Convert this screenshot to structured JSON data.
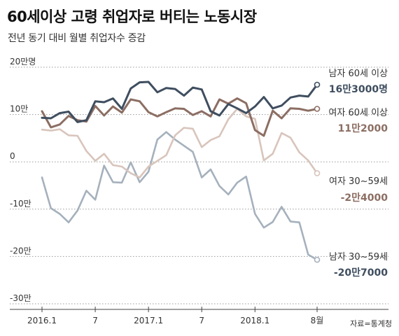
{
  "title": "60세이상 고령 취업자로 버티는 노동시장",
  "subtitle": "전년 동기 대비 월별 취업자수 증감",
  "source": "자료=통계청",
  "chart_data": {
    "type": "line",
    "title": "60세이상 고령 취업자로 버티는 노동시장",
    "subtitle": "전년 동기 대비 월별 취업자수 증감",
    "unit": "명",
    "ylim": [
      -300000,
      200000
    ],
    "yticks": [
      {
        "value": 200000,
        "label": "20만명"
      },
      {
        "value": 100000,
        "label": "10만"
      },
      {
        "value": 0,
        "label": "0"
      },
      {
        "value": -100000,
        "label": "-10만"
      },
      {
        "value": -200000,
        "label": "-20만"
      },
      {
        "value": -300000,
        "label": "-30만"
      }
    ],
    "x": [
      "2016.1",
      "2016.2",
      "2016.3",
      "2016.4",
      "2016.5",
      "2016.6",
      "2016.7",
      "2016.8",
      "2016.9",
      "2016.10",
      "2016.11",
      "2016.12",
      "2017.1",
      "2017.2",
      "2017.3",
      "2017.4",
      "2017.5",
      "2017.6",
      "2017.7",
      "2017.8",
      "2017.9",
      "2017.10",
      "2017.11",
      "2017.12",
      "2018.1",
      "2018.2",
      "2018.3",
      "2018.4",
      "2018.5",
      "2018.6",
      "2018.7",
      "2018.8"
    ],
    "xticks": [
      {
        "index": 0,
        "label": "2016.1"
      },
      {
        "index": 6,
        "label": "7"
      },
      {
        "index": 12,
        "label": "2017.1"
      },
      {
        "index": 18,
        "label": "7"
      },
      {
        "index": 24,
        "label": "2018.1"
      },
      {
        "index": 31,
        "label": "8월"
      }
    ],
    "grid": "dotted horizontal",
    "series": [
      {
        "name": "남자 60세 이상",
        "end_label": "16만3000명",
        "color": "#3f4e5f",
        "values": [
          93000,
          92000,
          103000,
          106000,
          84000,
          88000,
          128000,
          126000,
          134000,
          112000,
          155000,
          168000,
          169000,
          147000,
          156000,
          154000,
          140000,
          157000,
          153000,
          107000,
          98000,
          122000,
          113000,
          103000,
          117000,
          137000,
          113000,
          119000,
          136000,
          140000,
          138000,
          163000
        ]
      },
      {
        "name": "여자 60세 이상",
        "end_label": "11만2000",
        "color": "#8c6e63",
        "values": [
          107000,
          73000,
          79000,
          97000,
          88000,
          85000,
          118000,
          98000,
          117000,
          104000,
          132000,
          128000,
          105000,
          96000,
          105000,
          113000,
          112000,
          99000,
          107000,
          96000,
          132000,
          123000,
          134000,
          124000,
          67000,
          55000,
          108000,
          92000,
          113000,
          112000,
          108000,
          112000
        ]
      },
      {
        "name": "여자 30~59세",
        "end_label": "-2만4000",
        "color": "#d8c5bc",
        "values": [
          68000,
          66000,
          69000,
          56000,
          55000,
          23000,
          2000,
          17000,
          -7000,
          -10000,
          -24000,
          -33000,
          -10000,
          2000,
          14000,
          56000,
          72000,
          70000,
          31000,
          46000,
          54000,
          90000,
          112000,
          96000,
          91000,
          3000,
          17000,
          61000,
          51000,
          20000,
          3000,
          -24000
        ]
      },
      {
        "name": "남자 30~59세",
        "end_label": "-20만7000",
        "color": "#a5b1bc",
        "values": [
          -33000,
          -98000,
          -110000,
          -128000,
          -103000,
          -61000,
          -80000,
          -8000,
          -43000,
          -44000,
          -1000,
          -43000,
          -21000,
          47000,
          63000,
          47000,
          34000,
          21000,
          -33000,
          -16000,
          -51000,
          -69000,
          -44000,
          -31000,
          -110000,
          -139000,
          -127000,
          -95000,
          -126000,
          -128000,
          -196000,
          -207000
        ]
      }
    ]
  }
}
